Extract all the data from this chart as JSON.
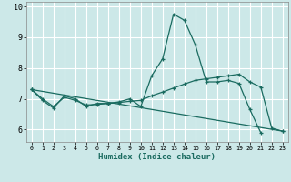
{
  "xlabel": "Humidex (Indice chaleur)",
  "bg_color": "#cce8e8",
  "grid_color": "#ffffff",
  "line_color": "#1a6b60",
  "xlim": [
    -0.5,
    23.5
  ],
  "ylim": [
    5.6,
    10.15
  ],
  "yticks": [
    6,
    7,
    8,
    9,
    10
  ],
  "xticks": [
    0,
    1,
    2,
    3,
    4,
    5,
    6,
    7,
    8,
    9,
    10,
    11,
    12,
    13,
    14,
    15,
    16,
    17,
    18,
    19,
    20,
    21,
    22,
    23
  ],
  "series": [
    {
      "x": [
        0,
        1,
        2,
        3,
        4,
        5,
        6,
        7,
        8,
        9,
        10,
        11,
        12,
        13,
        14,
        15,
        16,
        17,
        18,
        19,
        20,
        21
      ],
      "y": [
        7.3,
        6.95,
        6.7,
        7.1,
        7.0,
        6.75,
        6.85,
        6.85,
        6.9,
        7.0,
        6.75,
        7.75,
        8.3,
        9.75,
        9.55,
        8.75,
        7.55,
        7.55,
        7.6,
        7.5,
        6.65,
        5.9
      ]
    },
    {
      "x": [
        0,
        1,
        2,
        3,
        4,
        5,
        6,
        7,
        8,
        9,
        10,
        11,
        12,
        13,
        14,
        15,
        16,
        17,
        18,
        19,
        20,
        21,
        22,
        23
      ],
      "y": [
        7.3,
        7.0,
        6.75,
        7.05,
        6.95,
        6.8,
        6.82,
        6.85,
        6.88,
        6.92,
        6.95,
        7.1,
        7.22,
        7.35,
        7.48,
        7.6,
        7.65,
        7.7,
        7.75,
        7.8,
        7.55,
        7.38,
        6.05,
        5.95
      ]
    },
    {
      "x": [
        0,
        23
      ],
      "y": [
        7.3,
        5.95
      ]
    }
  ]
}
